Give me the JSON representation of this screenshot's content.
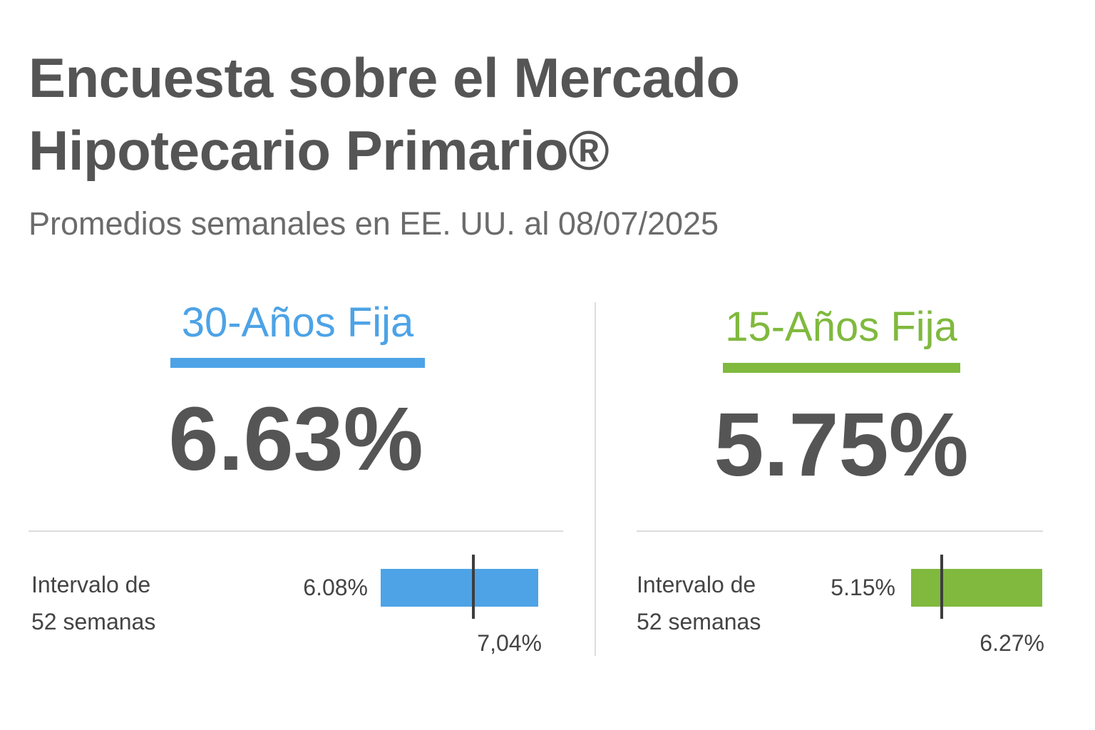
{
  "header": {
    "title_line1": "Encuesta sobre el Mercado",
    "title_line2": "Hipotecario Primario®",
    "subtitle": "Promedios semanales en EE. UU. al 08/07/2025"
  },
  "colors": {
    "text": "#555555",
    "fixed_30": "#4da3e6",
    "fixed_15": "#80b93e",
    "divider": "#dddddd",
    "marker": "#3d3d3d"
  },
  "panels": [
    {
      "term": "30-Años Fija",
      "rate": "6.63%",
      "range_label_line1": "Intervalo de",
      "range_label_line2": "52 semanas",
      "range_low": "6.08%",
      "range_high": "7,04%",
      "accent": "#4da3e6"
    },
    {
      "term": "15-Años Fija",
      "rate": "5.75%",
      "range_label_line1": "Intervalo de",
      "range_label_line2": "52 semanas",
      "range_low": "5.15%",
      "range_high": "6.27%",
      "accent": "#80b93e"
    }
  ]
}
